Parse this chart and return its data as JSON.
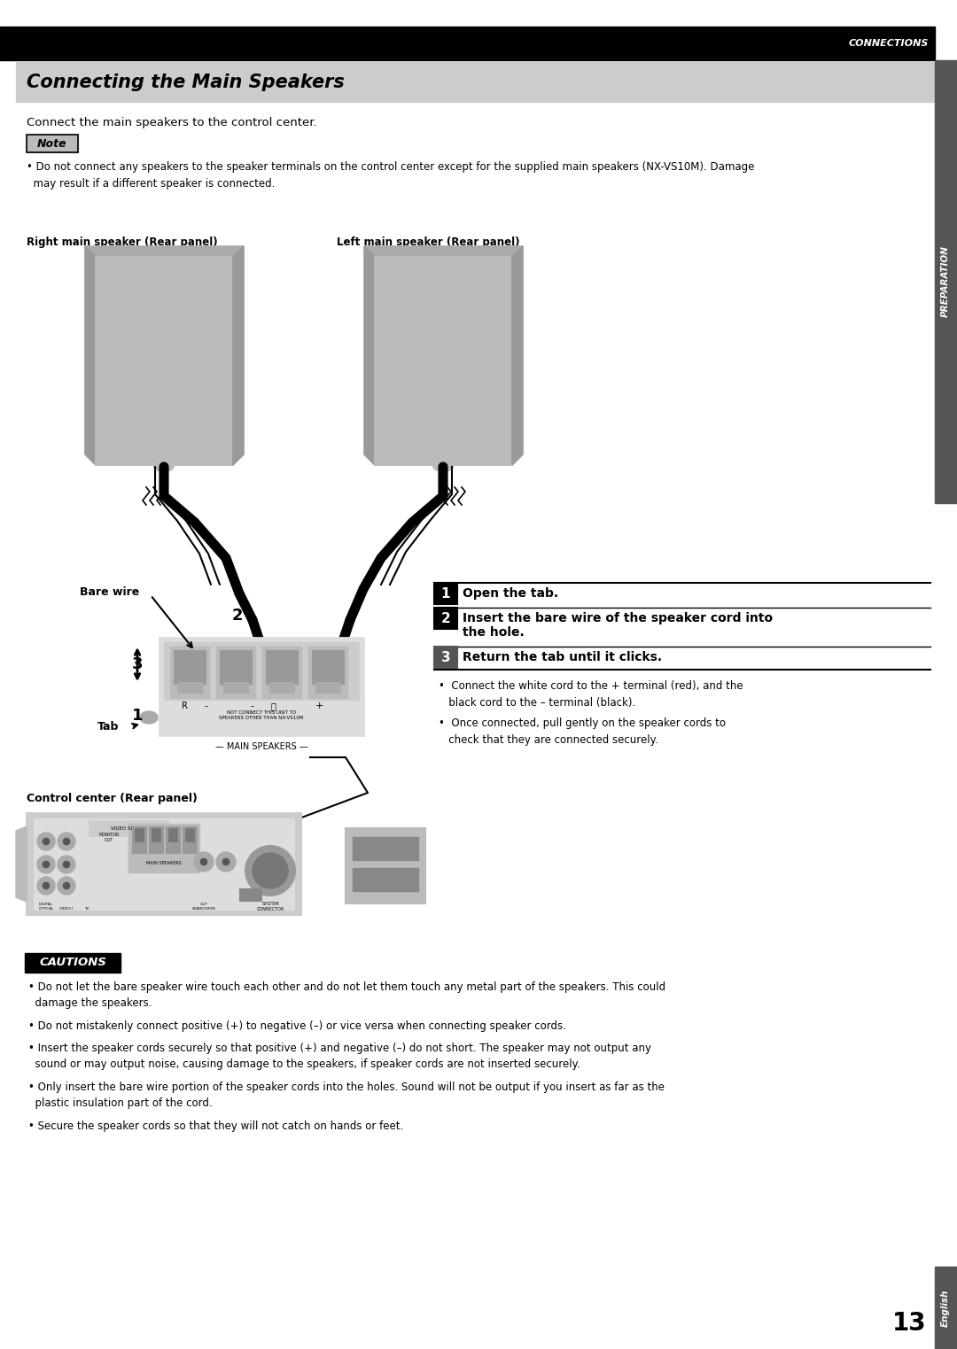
{
  "page_bg": "#ffffff",
  "header_bg": "#000000",
  "header_text": "CONNECTIONS",
  "header_text_color": "#ffffff",
  "title_bg": "#cccccc",
  "title_text": "Connecting the Main Speakers",
  "title_text_color": "#000000",
  "intro_text": "Connect the main speakers to the control center.",
  "note_label": "Note",
  "note_bg": "#bbbbbb",
  "note_bullet": "• Do not connect any speakers to the speaker terminals on the control center except for the supplied main speakers (NX-VS10M). Damage\n  may result if a different speaker is connected.",
  "right_speaker_label": "Right main speaker (Rear panel)",
  "left_speaker_label": "Left main speaker (Rear panel)",
  "bare_wire_label": "Bare wire",
  "tab_label": "Tab",
  "control_center_label": "Control center (Rear panel)",
  "step1_header": "Open the tab.",
  "step2_line1": "Insert the bare wire of the speaker cord into",
  "step2_line2": "the hole.",
  "step3_header": "Return the tab until it clicks.",
  "step_bullet1": "•  Connect the white cord to the + terminal (red), and the\n   black cord to the – terminal (black).",
  "step_bullet2": "•  Once connected, pull gently on the speaker cords to\n   check that they are connected securely.",
  "cautions_label": "CAUTIONS",
  "caution_bg": "#ffffff",
  "caution_border": "#000000",
  "cautions": [
    "• Do not let the bare speaker wire touch each other and do not let them touch any metal part of the speakers. This could\n  damage the speakers.",
    "• Do not mistakenly connect positive (+) to negative (–) or vice versa when connecting speaker cords.",
    "• Insert the speaker cords securely so that positive (+) and negative (–) do not short. The speaker may not output any\n  sound or may output noise, causing damage to the speakers, if speaker cords are not inserted securely.",
    "• Only insert the bare wire portion of the speaker cords into the holes. Sound will not be output if you insert as far as the\n  plastic insulation part of the cord.",
    "• Secure the speaker cords so that they will not catch on hands or feet."
  ],
  "preparation_bg": "#555555",
  "preparation_text": "PREPARATION",
  "page_number": "13",
  "english_bg": "#555555",
  "english_text": "English",
  "speaker_fill": "#bbbbbb",
  "speaker_side": "#888888",
  "speaker_outline": "#000000"
}
